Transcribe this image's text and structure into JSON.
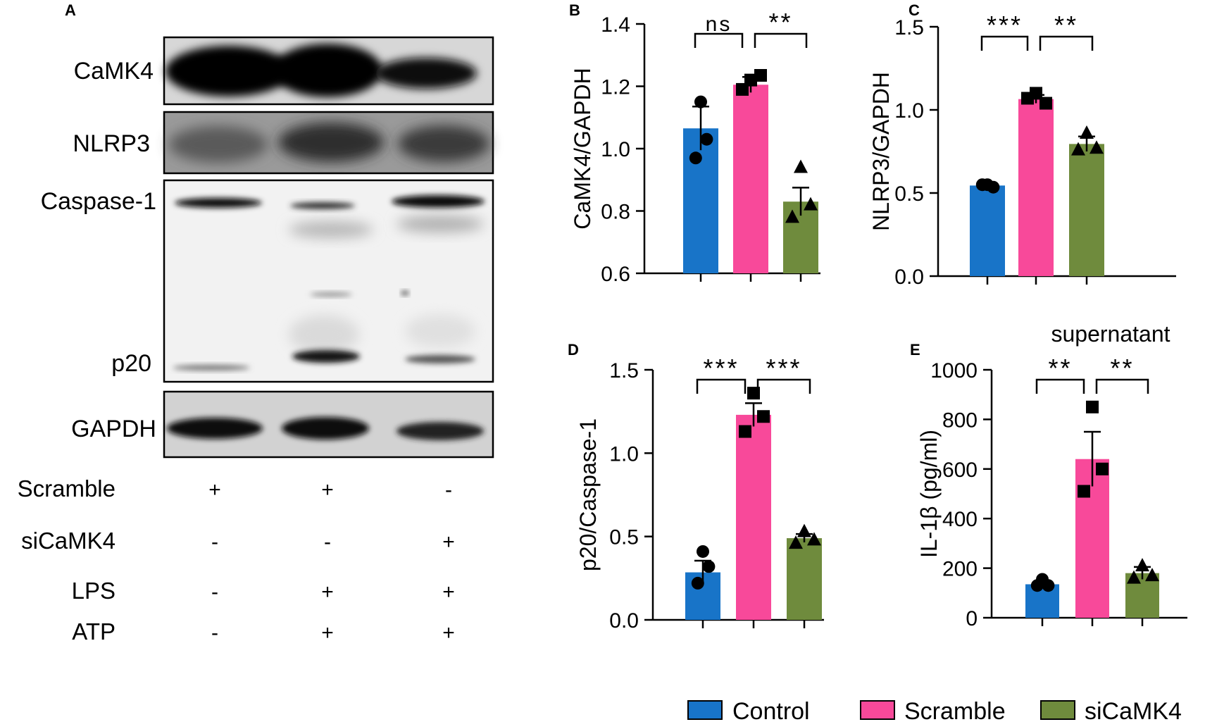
{
  "panel_a": {
    "letter": "A",
    "blots": [
      {
        "label": "CaMK4"
      },
      {
        "label": "NLRP3"
      },
      {
        "label": "Caspase-1",
        "label2": "p20"
      },
      {
        "label": "GAPDH"
      }
    ],
    "conditions": [
      {
        "name": "Scramble",
        "values": [
          "+",
          "+",
          "-"
        ]
      },
      {
        "name": "siCaMK4",
        "values": [
          "-",
          "-",
          "+"
        ]
      },
      {
        "name": "LPS",
        "values": [
          "-",
          "+",
          "+"
        ]
      },
      {
        "name": "ATP",
        "values": [
          "-",
          "+",
          "+"
        ]
      }
    ]
  },
  "colors": {
    "control": "#1874c8",
    "scramble": "#f8499a",
    "sicamk4": "#6f8b3d"
  },
  "legend": {
    "items": [
      "Control",
      "Scramble",
      "siCaMK4"
    ]
  },
  "chart_data": [
    {
      "type": "bar",
      "letter": "B",
      "ylabel": "CaMK4/GAPDH",
      "title": "",
      "ylim": [
        0.6,
        1.4
      ],
      "ticks": [
        "0.6",
        "0.8",
        "1.0",
        "1.2",
        "1.4"
      ],
      "categories": [
        "Control",
        "Scramble",
        "siCaMK4"
      ],
      "values": [
        1.065,
        1.205,
        0.83
      ],
      "errors": [
        0.07,
        0.025,
        0.045
      ],
      "points": [
        [
          1.15,
          1.03,
          0.97
        ],
        [
          1.22,
          1.235,
          1.19
        ],
        [
          0.94,
          0.82,
          0.78
        ]
      ],
      "markers": [
        "circle",
        "square",
        "triangle"
      ],
      "significance": [
        {
          "from": 0,
          "to": 1,
          "label": "ns"
        },
        {
          "from": 1,
          "to": 2,
          "label": "**"
        }
      ]
    },
    {
      "type": "bar",
      "letter": "C",
      "ylabel": "NLRP3/GAPDH",
      "title": "",
      "ylim": [
        0,
        1.5
      ],
      "ticks": [
        "0.0",
        "0.5",
        "1.0",
        "1.5"
      ],
      "categories": [
        "Control",
        "Scramble",
        "siCaMK4"
      ],
      "values": [
        0.545,
        1.065,
        0.795
      ],
      "errors": [
        0.01,
        0.025,
        0.045
      ],
      "points": [
        [
          0.55,
          0.535,
          0.55
        ],
        [
          1.1,
          1.04,
          1.07
        ],
        [
          0.86,
          0.77,
          0.76
        ]
      ],
      "markers": [
        "circle",
        "square",
        "triangle"
      ],
      "significance": [
        {
          "from": 0,
          "to": 1,
          "label": "***"
        },
        {
          "from": 1,
          "to": 2,
          "label": "**"
        }
      ]
    },
    {
      "type": "bar",
      "letter": "D",
      "ylabel": "p20/Caspase-1",
      "title": "",
      "ylim": [
        0,
        1.5
      ],
      "ticks": [
        "0.0",
        "0.5",
        "1.0",
        "1.5"
      ],
      "categories": [
        "Control",
        "Scramble",
        "siCaMK4"
      ],
      "values": [
        0.285,
        1.23,
        0.49
      ],
      "errors": [
        0.07,
        0.07,
        0.025
      ],
      "points": [
        [
          0.41,
          0.32,
          0.22
        ],
        [
          1.36,
          1.22,
          1.13
        ],
        [
          0.53,
          0.48,
          0.46
        ]
      ],
      "markers": [
        "circle",
        "square",
        "triangle"
      ],
      "significance": [
        {
          "from": 0,
          "to": 1,
          "label": "***"
        },
        {
          "from": 1,
          "to": 2,
          "label": "***"
        }
      ]
    },
    {
      "type": "bar",
      "letter": "E",
      "ylabel": "IL-1β (pg/ml)",
      "title": "supernatant",
      "ylim": [
        0,
        1000
      ],
      "ticks": [
        "0",
        "200",
        "400",
        "600",
        "800",
        "1000"
      ],
      "categories": [
        "Control",
        "Scramble",
        "siCaMK4"
      ],
      "values": [
        135,
        640,
        180
      ],
      "errors": [
        10,
        110,
        25
      ],
      "points": [
        [
          155,
          130,
          130
        ],
        [
          850,
          600,
          510
        ],
        [
          210,
          170,
          160
        ]
      ],
      "markers": [
        "circle",
        "square",
        "triangle"
      ],
      "significance": [
        {
          "from": 0,
          "to": 1,
          "label": "**"
        },
        {
          "from": 1,
          "to": 2,
          "label": "**"
        }
      ]
    }
  ]
}
